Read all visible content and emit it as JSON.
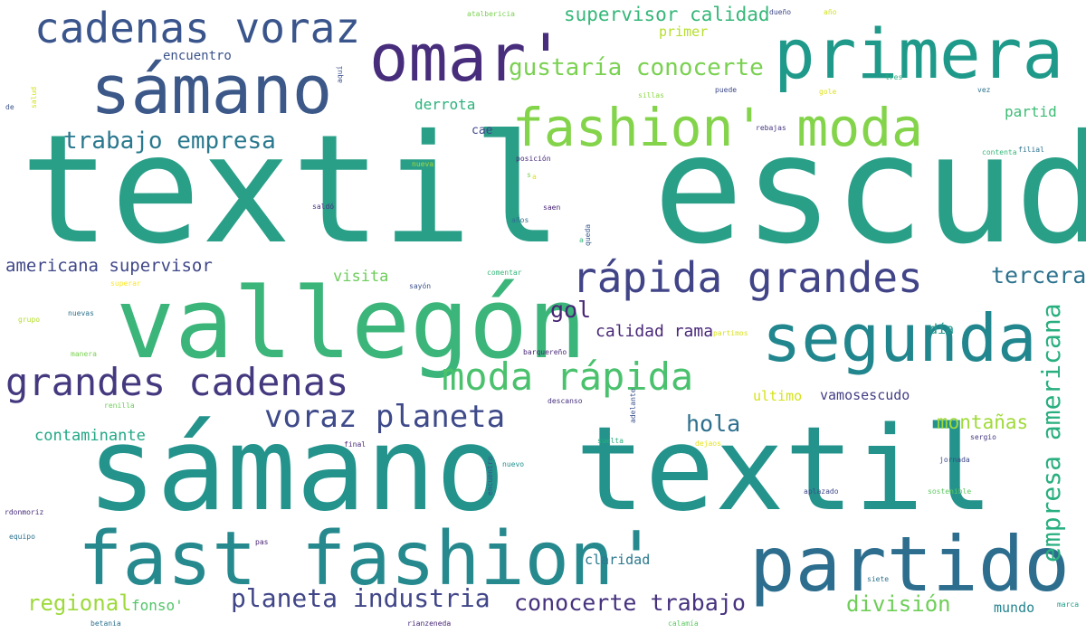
{
  "words": [
    {
      "text": "textil escudo",
      "color": "#2a9f88",
      "orientation": "horizontal"
    },
    {
      "text": "sámano textil",
      "color": "#23938c",
      "orientation": "horizontal"
    },
    {
      "text": "vallegón",
      "color": "#3bb57a",
      "orientation": "horizontal"
    },
    {
      "text": "fast fashion'",
      "color": "#26898e",
      "orientation": "horizontal"
    },
    {
      "text": "partido",
      "color": "#2d6e8e",
      "orientation": "horizontal"
    },
    {
      "text": "sámano",
      "color": "#3c5889",
      "orientation": "horizontal"
    },
    {
      "text": "primera",
      "color": "#1f9a8a",
      "orientation": "horizontal"
    },
    {
      "text": "omar'",
      "color": "#472d7b",
      "orientation": "horizontal"
    },
    {
      "text": "segunda",
      "color": "#21868d",
      "orientation": "horizontal"
    },
    {
      "text": "fashion' moda",
      "color": "#84d44b",
      "orientation": "horizontal"
    },
    {
      "text": "cadenas voraz",
      "color": "#3a558c",
      "orientation": "horizontal"
    },
    {
      "text": "rápida grandes",
      "color": "#414487",
      "orientation": "horizontal"
    },
    {
      "text": "grandes cadenas",
      "color": "#44397f",
      "orientation": "horizontal"
    },
    {
      "text": "moda rápida",
      "color": "#4ac16d",
      "orientation": "horizontal"
    },
    {
      "text": "voraz planeta",
      "color": "#3e4a89",
      "orientation": "horizontal"
    },
    {
      "text": "gustaría conocerte",
      "color": "#7ad151",
      "orientation": "horizontal"
    },
    {
      "text": "supervisor calidad",
      "color": "#35b779",
      "orientation": "horizontal"
    },
    {
      "text": "trabajo empresa",
      "color": "#2a788e",
      "orientation": "horizontal"
    },
    {
      "text": "americana supervisor",
      "color": "#3f4788",
      "orientation": "horizontal"
    },
    {
      "text": "planeta industria",
      "color": "#404688",
      "orientation": "horizontal"
    },
    {
      "text": "conocerte trabajo",
      "color": "#46327e",
      "orientation": "horizontal"
    },
    {
      "text": "empresa americana",
      "color": "#29af7f",
      "orientation": "vertical"
    },
    {
      "text": "tercera",
      "color": "#2c728e",
      "orientation": "horizontal"
    },
    {
      "text": "hola",
      "color": "#2d708e",
      "orientation": "horizontal"
    },
    {
      "text": "gol",
      "color": "#482576",
      "orientation": "horizontal"
    },
    {
      "text": "calidad rama",
      "color": "#482878",
      "orientation": "horizontal"
    },
    {
      "text": "visita",
      "color": "#6ccd5a",
      "orientation": "horizontal"
    },
    {
      "text": "montañas",
      "color": "#a0da39",
      "orientation": "horizontal"
    },
    {
      "text": "división",
      "color": "#6ece58",
      "orientation": "horizontal"
    },
    {
      "text": "regional",
      "color": "#9dd93b",
      "orientation": "horizontal"
    },
    {
      "text": "fonso'",
      "color": "#52c569",
      "orientation": "horizontal"
    },
    {
      "text": "contaminante",
      "color": "#22a785",
      "orientation": "horizontal"
    },
    {
      "text": "derrota",
      "color": "#2db27d",
      "orientation": "horizontal"
    },
    {
      "text": "partid",
      "color": "#3dbc74",
      "orientation": "horizontal"
    },
    {
      "text": "primer",
      "color": "#b5de2b",
      "orientation": "horizontal"
    },
    {
      "text": "encuentro",
      "color": "#3b528b",
      "orientation": "horizontal"
    },
    {
      "text": "vamosescudo",
      "color": "#433e85",
      "orientation": "horizontal"
    },
    {
      "text": "ultimo",
      "color": "#d5e21a",
      "orientation": "horizontal"
    },
    {
      "text": "claridad",
      "color": "#2a788e",
      "orientation": "horizontal"
    },
    {
      "text": "mundo",
      "color": "#25848e",
      "orientation": "horizontal"
    },
    {
      "text": "día",
      "color": "#1f988b",
      "orientation": "horizontal"
    },
    {
      "text": "cae",
      "color": "#3f4889",
      "orientation": "horizontal"
    },
    {
      "text": "atalbericia",
      "color": "#7ad151",
      "orientation": "horizontal"
    },
    {
      "text": "dueño",
      "color": "#3e4989",
      "orientation": "horizontal"
    },
    {
      "text": "año",
      "color": "#d2e21b",
      "orientation": "horizontal"
    },
    {
      "text": "aquí",
      "color": "#3b528b",
      "orientation": "vertical"
    },
    {
      "text": "tres",
      "color": "#29af7f",
      "orientation": "horizontal"
    },
    {
      "text": "sillas",
      "color": "#8bd646",
      "orientation": "horizontal"
    },
    {
      "text": "puede",
      "color": "#3e4989",
      "orientation": "horizontal"
    },
    {
      "text": "gole",
      "color": "#dde318",
      "orientation": "horizontal"
    },
    {
      "text": "rebajas",
      "color": "#453581",
      "orientation": "horizontal"
    },
    {
      "text": "filial",
      "color": "#2c728e",
      "orientation": "horizontal"
    },
    {
      "text": "contenta",
      "color": "#35b779",
      "orientation": "horizontal"
    },
    {
      "text": "posición",
      "color": "#472a7a",
      "orientation": "horizontal"
    },
    {
      "text": "nueva",
      "color": "#a0da39",
      "orientation": "horizontal"
    },
    {
      "text": "saldó",
      "color": "#46327e",
      "orientation": "horizontal"
    },
    {
      "text": "saen",
      "color": "#482576",
      "orientation": "horizontal"
    },
    {
      "text": "años",
      "color": "#2c728e",
      "orientation": "horizontal"
    },
    {
      "text": "queda",
      "color": "#38598c",
      "orientation": "vertical"
    },
    {
      "text": "superar",
      "color": "#fde725",
      "orientation": "horizontal"
    },
    {
      "text": "sayón",
      "color": "#3b528b",
      "orientation": "horizontal"
    },
    {
      "text": "comentar",
      "color": "#35b779",
      "orientation": "horizontal"
    },
    {
      "text": "grupo",
      "color": "#b5de2b",
      "orientation": "horizontal"
    },
    {
      "text": "nuevas",
      "color": "#2c728e",
      "orientation": "horizontal"
    },
    {
      "text": "partimos",
      "color": "#dae319",
      "orientation": "horizontal"
    },
    {
      "text": "manera",
      "color": "#7ad151",
      "orientation": "horizontal"
    },
    {
      "text": "barquereño",
      "color": "#482878",
      "orientation": "horizontal"
    },
    {
      "text": "renilla",
      "color": "#6ece58",
      "orientation": "horizontal"
    },
    {
      "text": "descanso",
      "color": "#46307e",
      "orientation": "horizontal"
    },
    {
      "text": "adelante",
      "color": "#3b528b",
      "orientation": "vertical"
    },
    {
      "text": "final",
      "color": "#472a7a",
      "orientation": "horizontal"
    },
    {
      "text": "suelta",
      "color": "#29af7f",
      "orientation": "horizontal"
    },
    {
      "text": "dejaos",
      "color": "#e5e419",
      "orientation": "horizontal"
    },
    {
      "text": "sergio",
      "color": "#453781",
      "orientation": "horizontal"
    },
    {
      "text": "jornada",
      "color": "#3e4989",
      "orientation": "horizontal"
    },
    {
      "text": "nuevo",
      "color": "#21918c",
      "orientation": "horizontal"
    },
    {
      "text": "encuentro",
      "color": "#3b528b",
      "orientation": "vertical"
    },
    {
      "text": "aplazado",
      "color": "#3e4989",
      "orientation": "horizontal"
    },
    {
      "text": "sostenible",
      "color": "#5ec962",
      "orientation": "horizontal"
    },
    {
      "text": "rdonmoriz",
      "color": "#472d7b",
      "orientation": "horizontal"
    },
    {
      "text": "equipo",
      "color": "#2c728e",
      "orientation": "horizontal"
    },
    {
      "text": "pas",
      "color": "#482475",
      "orientation": "horizontal"
    },
    {
      "text": "siete",
      "color": "#2c728e",
      "orientation": "horizontal"
    },
    {
      "text": "marca",
      "color": "#1f9e89",
      "orientation": "horizontal"
    },
    {
      "text": "betania",
      "color": "#2c728e",
      "orientation": "horizontal"
    },
    {
      "text": "rianzeneda",
      "color": "#482878",
      "orientation": "horizontal"
    },
    {
      "text": "calamía",
      "color": "#5ec962",
      "orientation": "horizontal"
    },
    {
      "text": "de",
      "color": "#3b528b",
      "orientation": "horizontal"
    },
    {
      "text": "salud",
      "color": "#d2e21b",
      "orientation": "vertical"
    },
    {
      "text": "vez",
      "color": "#2c728e",
      "orientation": "horizontal"
    },
    {
      "text": "a",
      "color": "#dde318",
      "orientation": "horizontal"
    },
    {
      "text": "s",
      "color": "#7ad151",
      "orientation": "horizontal"
    },
    {
      "text": "a",
      "color": "#35b779",
      "orientation": "horizontal"
    }
  ]
}
